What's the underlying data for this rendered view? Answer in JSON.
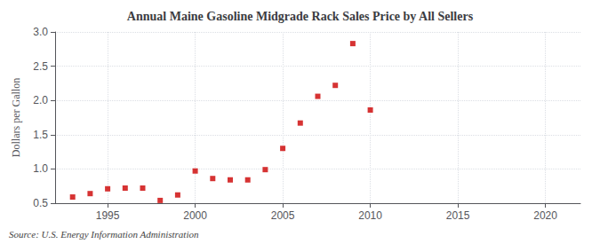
{
  "chart_data": {
    "type": "scatter",
    "title": "Annual Maine Gasoline Midgrade Rack Sales Price by All Sellers",
    "ylabel": "Dollars per Gallon",
    "annotation": "Source: U.S. Energy Information Administration",
    "x": [
      1993,
      1994,
      1995,
      1996,
      1997,
      1998,
      1999,
      2000,
      2001,
      2002,
      2003,
      2004,
      2005,
      2006,
      2007,
      2008,
      2009,
      2010
    ],
    "values": [
      0.59,
      0.64,
      0.71,
      0.72,
      0.72,
      0.54,
      0.62,
      0.97,
      0.86,
      0.84,
      0.84,
      0.99,
      1.3,
      1.67,
      2.06,
      2.22,
      2.83,
      1.86
    ],
    "color": "#cc0000",
    "marker": "square",
    "xlim": [
      1992,
      2022
    ],
    "xticks": [
      1995,
      2000,
      2005,
      2010,
      2015,
      2020
    ],
    "ylim": [
      0.5,
      3.0
    ],
    "yticks": [
      0.5,
      {
        "value": 1.0,
        "label": "1.0"
      },
      1.5,
      {
        "value": 2.0,
        "label": "2.0"
      },
      2.5,
      {
        "value": 3.0,
        "label": "3.0"
      }
    ],
    "grid": true
  }
}
